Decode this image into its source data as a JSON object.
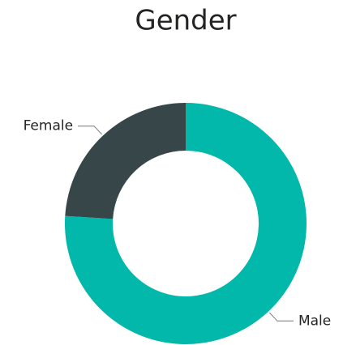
{
  "chart_data": {
    "type": "donut",
    "title": "Gender",
    "categories": [
      "Male",
      "Female"
    ],
    "values": [
      76,
      24
    ],
    "colors": [
      "#01B8AA",
      "#374649"
    ]
  }
}
